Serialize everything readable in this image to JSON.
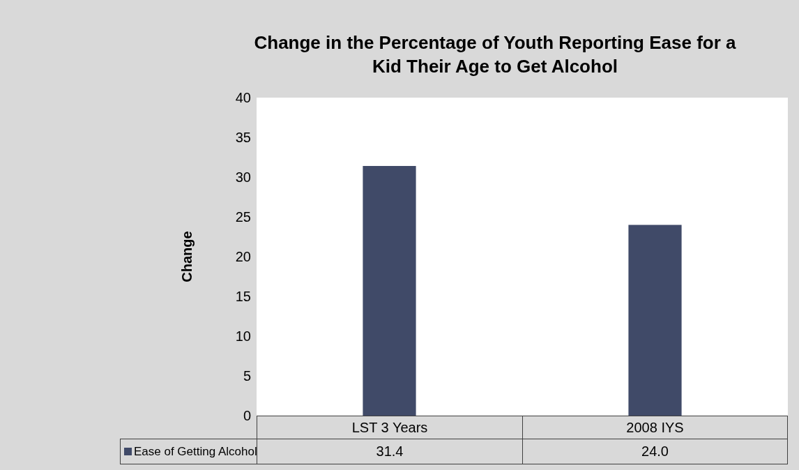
{
  "chart_data": {
    "type": "bar",
    "title": "Change in the Percentage of Youth Reporting Ease for a Kid Their Age to Get Alcohol",
    "ylabel": "Change",
    "categories": [
      "LST 3 Years",
      "2008 IYS"
    ],
    "series": [
      {
        "name": "Ease of Getting Alcohol",
        "color": "#404a68",
        "values": [
          31.4,
          24.0
        ],
        "value_labels": [
          "31.4",
          "24.0"
        ]
      }
    ],
    "ylim": [
      0,
      40
    ],
    "yticks": [
      0,
      5,
      10,
      15,
      20,
      25,
      30,
      35,
      40
    ],
    "grid": false,
    "legend": "bottom"
  }
}
